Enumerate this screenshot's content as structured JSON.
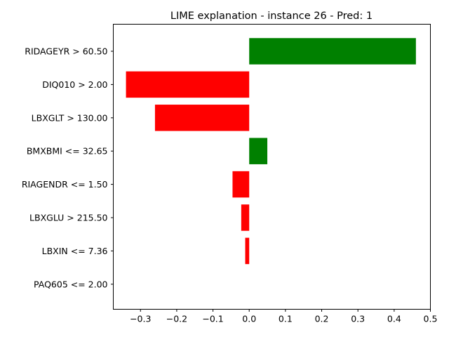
{
  "chart_data": {
    "type": "bar",
    "orientation": "horizontal",
    "title": "LIME explanation - instance 26 - Pred: 1",
    "xlabel": "",
    "ylabel": "",
    "xlim": [
      -0.375,
      0.5
    ],
    "xticks": [
      -0.3,
      -0.2,
      -0.1,
      0.0,
      0.1,
      0.2,
      0.3,
      0.4,
      0.5
    ],
    "xtick_labels": [
      "−0.3",
      "−0.2",
      "−0.1",
      "0.0",
      "0.1",
      "0.2",
      "0.3",
      "0.4",
      "0.5"
    ],
    "grid": false,
    "legend": "none",
    "positive_color": "#008000",
    "negative_color": "#ff0000",
    "categories": [
      "RIDAGEYR > 60.50",
      "DIQ010 > 2.00",
      "LBXGLT > 130.00",
      "BMXBMI <= 32.65",
      "RIAGENDR <= 1.50",
      "LBXGLU > 215.50",
      "LBXIN <= 7.36",
      "PAQ605 <= 2.00"
    ],
    "values": [
      0.46,
      -0.34,
      -0.26,
      0.05,
      -0.046,
      -0.022,
      -0.011,
      0.0
    ]
  }
}
